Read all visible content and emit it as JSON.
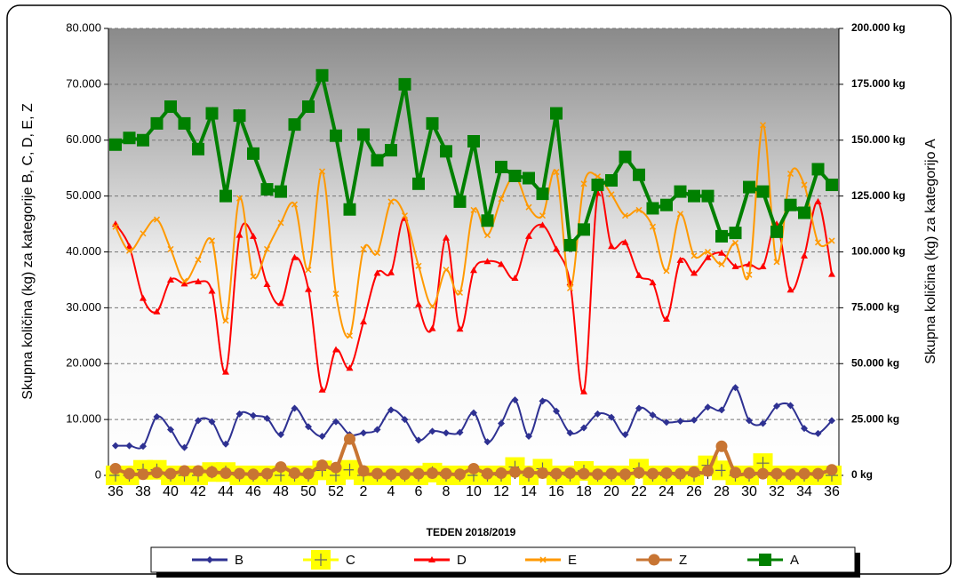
{
  "chart_data": {
    "type": "line",
    "x_title": "TEDEN 2018/2019",
    "y_title": "Skupna količina  (kg) za kategorije B, C, D, E, Z",
    "y2_title": "Skupna količina  (kg) za kategorijo A",
    "categories": [
      "36",
      null,
      "38",
      null,
      "40",
      null,
      "42",
      null,
      "44",
      null,
      "46",
      null,
      "48",
      null,
      "50",
      null,
      "52",
      null,
      "2",
      null,
      "4",
      null,
      "6",
      null,
      "8",
      null,
      "10",
      null,
      "12",
      null,
      "14",
      null,
      "16",
      null,
      "18",
      null,
      "20",
      null,
      "22",
      null,
      "24",
      null,
      "26",
      null,
      "28",
      null,
      "30",
      null,
      "32",
      null,
      "34",
      null,
      "36"
    ],
    "ylim": [
      0,
      80000
    ],
    "yticks": [
      0,
      {
        "value": 10000,
        "label": "10.000"
      },
      {
        "value": 20000,
        "label": "20.000"
      },
      {
        "value": 30000,
        "label": "30.000"
      },
      {
        "value": 40000,
        "label": "40.000"
      },
      {
        "value": 50000,
        "label": "50.000"
      },
      {
        "value": 60000,
        "label": "60.000"
      },
      {
        "value": 70000,
        "label": "70.000"
      },
      {
        "value": 80000,
        "label": "80.000"
      }
    ],
    "y2lim": [
      0,
      200000
    ],
    "y2ticks": [
      {
        "value": 0,
        "label": "0 kg"
      },
      {
        "value": 25000,
        "label": "25.000 kg"
      },
      {
        "value": 50000,
        "label": "50.000 kg"
      },
      {
        "value": 75000,
        "label": "75.000 kg"
      },
      {
        "value": 100000,
        "label": "100.000 kg"
      },
      {
        "value": 125000,
        "label": "125.000 kg"
      },
      {
        "value": 150000,
        "label": "150.000 kg"
      },
      {
        "value": 175000,
        "label": "175.000 kg"
      },
      {
        "value": 200000,
        "label": "200.000 kg"
      }
    ],
    "grid": true,
    "legend": "bottom",
    "series": [
      {
        "name": "B",
        "color": "#2e3192",
        "marker": "diamond",
        "values": [
          5300,
          5300,
          5200,
          10500,
          8200,
          5000,
          9800,
          9600,
          5600,
          11000,
          10700,
          10200,
          7300,
          12000,
          8700,
          7000,
          9600,
          7300,
          7600,
          8200,
          11700,
          10000,
          6300,
          7900,
          7600,
          7700,
          11200,
          6000,
          9300,
          13500,
          7000,
          13300,
          11500,
          7600,
          8500,
          11000,
          10400,
          7300,
          12000,
          10800,
          9500,
          9700,
          9900,
          12200,
          11700,
          15700,
          9800,
          9300,
          12400,
          12500,
          8400,
          7500,
          9800
        ]
      },
      {
        "name": "C",
        "color": "#ffff00",
        "marker": "plus",
        "values": [
          0,
          0,
          1000,
          1000,
          0,
          0,
          0,
          600,
          600,
          0,
          0,
          0,
          0,
          0,
          0,
          900,
          0,
          1000,
          0,
          0,
          0,
          0,
          0,
          500,
          0,
          0,
          0,
          0,
          0,
          1500,
          0,
          1200,
          0,
          0,
          800,
          0,
          0,
          0,
          1200,
          0,
          0,
          0,
          0,
          1800,
          900,
          0,
          0,
          2200,
          0,
          0,
          0,
          0,
          0
        ]
      },
      {
        "name": "D",
        "color": "#ff0000",
        "marker": "triangle",
        "values": [
          45000,
          41000,
          31700,
          29300,
          35000,
          34300,
          34700,
          33000,
          18500,
          43000,
          42800,
          34200,
          30800,
          39000,
          33300,
          15300,
          22500,
          19200,
          27500,
          36200,
          36300,
          46000,
          30600,
          26300,
          42500,
          26200,
          36700,
          38300,
          37800,
          35300,
          42800,
          44800,
          40500,
          34500,
          15000,
          50500,
          41000,
          41700,
          35800,
          34500,
          28000,
          38500,
          36200,
          39000,
          39800,
          37400,
          37800,
          37400,
          45000,
          33200,
          39300,
          49000,
          36000
        ]
      },
      {
        "name": "E",
        "color": "#ff9900",
        "marker": "x",
        "values": [
          44500,
          40200,
          43300,
          45800,
          40500,
          34800,
          38600,
          42000,
          27700,
          49600,
          35600,
          40500,
          45200,
          48500,
          36800,
          54400,
          32500,
          25000,
          40500,
          39800,
          49000,
          46500,
          37500,
          30300,
          36800,
          32700,
          47500,
          43000,
          49500,
          53500,
          48000,
          46500,
          54300,
          33500,
          52200,
          53500,
          50300,
          46500,
          47500,
          44500,
          36600,
          46800,
          39300,
          40000,
          37800,
          41600,
          35900,
          62700,
          38200,
          54000,
          52000,
          41700,
          42000
        ]
      },
      {
        "name": "Z",
        "color": "#c87533",
        "marker": "circle",
        "values": [
          1200,
          300,
          200,
          500,
          300,
          800,
          800,
          600,
          400,
          300,
          200,
          300,
          1500,
          400,
          300,
          1800,
          1400,
          6500,
          800,
          300,
          200,
          200,
          300,
          400,
          300,
          200,
          1200,
          300,
          400,
          600,
          500,
          400,
          300,
          400,
          300,
          200,
          300,
          200,
          500,
          300,
          400,
          300,
          600,
          800,
          5200,
          500,
          400,
          300,
          300,
          200,
          300,
          300,
          1000
        ]
      },
      {
        "name": "A",
        "color": "#008000",
        "marker": "square",
        "axis": "y2",
        "values": [
          148000,
          151000,
          150000,
          157500,
          165000,
          157500,
          146000,
          162000,
          125000,
          161000,
          144000,
          128000,
          127000,
          157000,
          165000,
          179000,
          152000,
          119000,
          152500,
          141000,
          145500,
          175000,
          130500,
          157500,
          145000,
          122500,
          149500,
          114000,
          138000,
          134000,
          133000,
          126000,
          162000,
          103000,
          110000,
          130000,
          132000,
          142500,
          134500,
          119500,
          121000,
          127000,
          125000,
          125000,
          107000,
          108500,
          129000,
          127000,
          109000,
          121000,
          117500,
          137000,
          130000
        ]
      }
    ]
  }
}
